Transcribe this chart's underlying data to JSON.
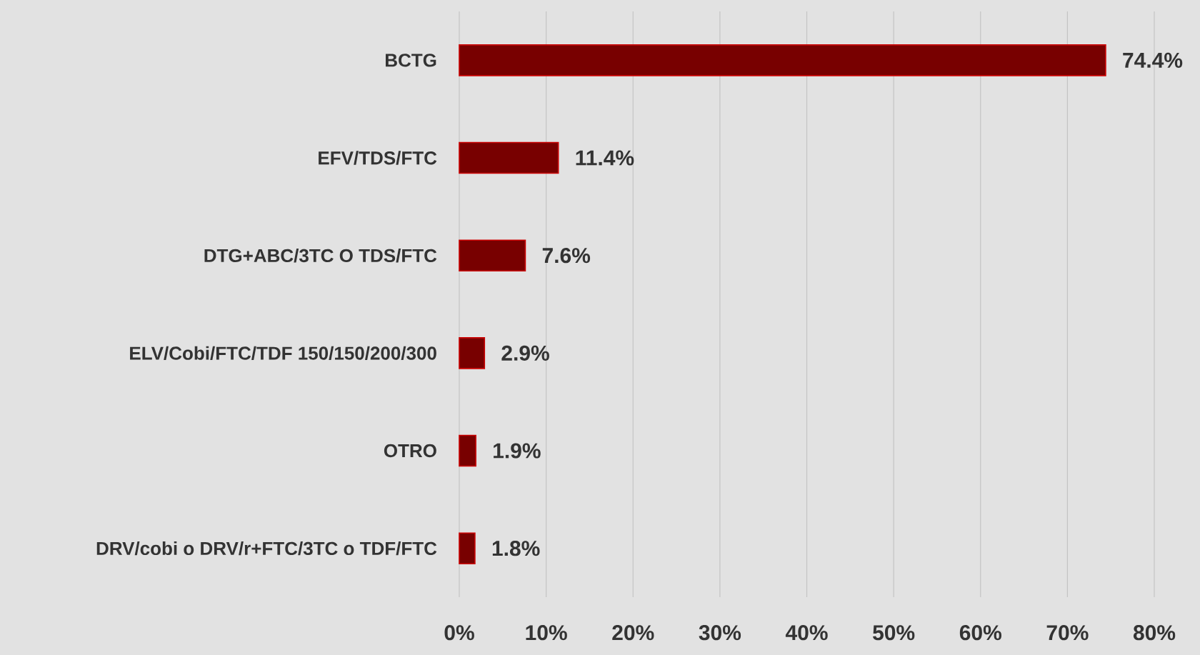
{
  "chart_data": {
    "type": "bar",
    "orientation": "horizontal",
    "categories": [
      "BCTG",
      "EFV/TDS/FTC",
      "DTG+ABC/3TC O TDS/FTC",
      "ELV/Cobi/FTC/TDF 150/150/200/300",
      "OTRO",
      "DRV/cobi o DRV/r+FTC/3TC o TDF/FTC"
    ],
    "values": [
      74.4,
      11.4,
      7.6,
      2.9,
      1.9,
      1.8
    ],
    "value_labels": [
      "74.4%",
      "11.4%",
      "7.6%",
      "2.9%",
      "1.9%",
      "1.8%"
    ],
    "color": "#780000",
    "xlim": [
      0,
      80
    ],
    "xticks": [
      {
        "value": 0,
        "label": "0%"
      },
      {
        "value": 10,
        "label": "10%"
      },
      {
        "value": 20,
        "label": "20%"
      },
      {
        "value": 30,
        "label": "30%"
      },
      {
        "value": 40,
        "label": "40%"
      },
      {
        "value": 50,
        "label": "50%"
      },
      {
        "value": 60,
        "label": "60%"
      },
      {
        "value": 70,
        "label": "70%"
      },
      {
        "value": 80,
        "label": "80%"
      }
    ],
    "grid": "x"
  }
}
